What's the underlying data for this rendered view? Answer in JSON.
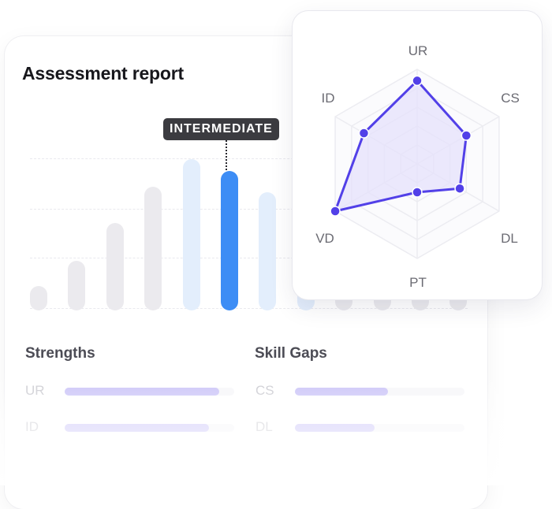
{
  "report": {
    "title": "Assessment report",
    "level_badge": "INTERMEDIATE"
  },
  "level_chart": {
    "selected_index": 5,
    "levels": [
      {
        "value": 0.16,
        "state": "muted"
      },
      {
        "value": 0.33,
        "state": "muted"
      },
      {
        "value": 0.58,
        "state": "muted"
      },
      {
        "value": 0.82,
        "state": "muted"
      },
      {
        "value": 1.0,
        "state": "highlight-light"
      },
      {
        "value": 0.92,
        "state": "selected"
      },
      {
        "value": 0.78,
        "state": "highlight-light"
      },
      {
        "value": 0.16,
        "state": "highlight-light"
      },
      {
        "value": 0.16,
        "state": "muted"
      },
      {
        "value": 0.16,
        "state": "muted"
      },
      {
        "value": 0.16,
        "state": "muted"
      },
      {
        "value": 0.16,
        "state": "muted"
      }
    ]
  },
  "strengths": {
    "title": "Strengths",
    "items": [
      {
        "code": "UR",
        "level": 0.91
      },
      {
        "code": "ID",
        "level": 0.85
      }
    ]
  },
  "skill_gaps": {
    "title": "Skill Gaps",
    "items": [
      {
        "code": "CS",
        "level": 0.55
      },
      {
        "code": "DL",
        "level": 0.47
      }
    ]
  },
  "radar": {
    "axes": [
      "UR",
      "CS",
      "DL",
      "PT",
      "VD",
      "ID"
    ],
    "values": [
      0.88,
      0.6,
      0.52,
      0.3,
      1.0,
      0.65
    ]
  },
  "colors": {
    "selected_bar": "#3d8df5",
    "light_bar": "#e3eefc",
    "muted_bar": "#ebeaee",
    "radar_line": "#5240e8",
    "radar_fill": "#e6e1fb",
    "skill_fill": "#c9c2f7"
  }
}
